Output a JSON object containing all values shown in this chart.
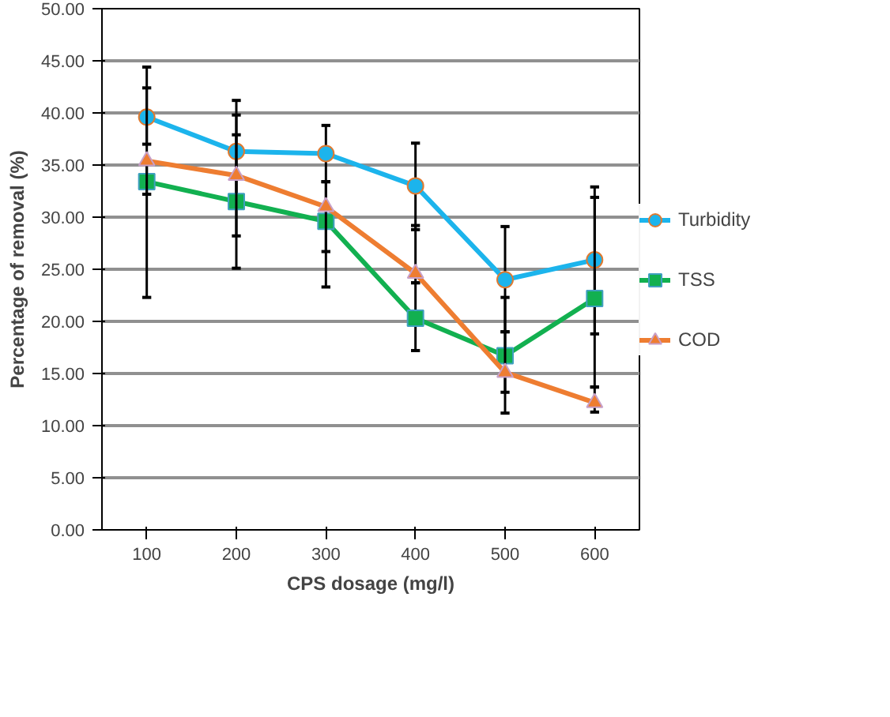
{
  "chart_data": {
    "type": "line",
    "xlabel": "CPS dosage (mg/l)",
    "ylabel": "Percentage of removal (%)",
    "categories": [
      "100",
      "200",
      "300",
      "400",
      "500",
      "600"
    ],
    "ylim": [
      0,
      50
    ],
    "yticks": [
      {
        "value": 0,
        "label": "0.00"
      },
      {
        "value": 5,
        "label": "5.00"
      },
      {
        "value": 10,
        "label": "10.00"
      },
      {
        "value": 15,
        "label": "15.00"
      },
      {
        "value": 20,
        "label": "20.00"
      },
      {
        "value": 25,
        "label": "25.00"
      },
      {
        "value": 30,
        "label": "30.00"
      },
      {
        "value": 35,
        "label": "35.00"
      },
      {
        "value": 40,
        "label": "40.00"
      },
      {
        "value": 45,
        "label": "45.00"
      },
      {
        "value": 50,
        "label": "50.00"
      }
    ],
    "grid": "y",
    "legend": "right",
    "series": [
      {
        "name": "Turbidity",
        "color": "#1cb4ec",
        "marker": "circle",
        "values": [
          39.6,
          36.3,
          36.1,
          33.0,
          24.0,
          25.9
        ],
        "errors": [
          [
            37.0,
            44.4
          ],
          [
            31.4,
            41.2
          ],
          [
            33.4,
            38.8
          ],
          [
            28.8,
            37.1
          ],
          [
            19.0,
            29.1
          ],
          [
            18.8,
            32.9
          ]
        ]
      },
      {
        "name": "TSS",
        "color": "#12b050",
        "marker": "square",
        "values": [
          33.4,
          31.5,
          29.6,
          20.3,
          16.7,
          22.2
        ],
        "errors": [
          [
            22.3,
            35.4
          ],
          [
            25.1,
            37.9
          ],
          [
            23.3,
            33.4
          ],
          [
            17.2,
            23.7
          ],
          [
            13.2,
            22.3
          ],
          [
            13.7,
            31.9
          ]
        ]
      },
      {
        "name": "COD",
        "color": "#ee7d31",
        "marker": "triangle",
        "values": [
          35.4,
          34.0,
          31.0,
          24.6,
          15.1,
          12.2
        ],
        "errors": [
          [
            32.2,
            42.4
          ],
          [
            28.2,
            39.8
          ],
          [
            26.7,
            33.4
          ],
          [
            23.7,
            29.2
          ],
          [
            11.2,
            19.0
          ],
          [
            11.3,
            13.7
          ]
        ]
      }
    ]
  }
}
